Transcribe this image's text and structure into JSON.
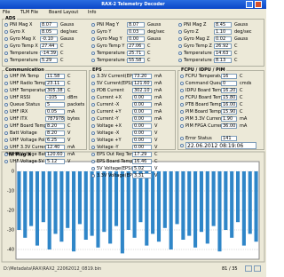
{
  "window": {
    "title": "RAX-2 Telemetry Decoder"
  },
  "menu": [
    "File",
    "TLM File",
    "Board Layout",
    "Info"
  ],
  "groups": [
    {
      "title": "ADS",
      "columns": 3,
      "rows": [
        {
          "label": "PNI Mag X",
          "value": "8.07",
          "unit": "Gauss"
        },
        {
          "label": "Gyro X",
          "value": "8.05",
          "unit": "deg/sec"
        },
        {
          "label": "Gyro Mag X",
          "value": "-0.10",
          "unit": "Gauss"
        },
        {
          "label": "Gyro Temp X",
          "value": "27.44",
          "unit": "C"
        },
        {
          "label": "Temperature +X",
          "value": "-14.39",
          "unit": "C"
        },
        {
          "label": "Temperature -X",
          "value": "5.29",
          "unit": "C"
        },
        {
          "label": "PNI Mag Y",
          "value": "8.07",
          "unit": "Gauss"
        },
        {
          "label": "Gyro Y",
          "value": "0.03",
          "unit": "deg/sec"
        },
        {
          "label": "Gyro Mag Y",
          "value": "0.00",
          "unit": "Gauss"
        },
        {
          "label": "Gyro Temp Y",
          "value": "27.06",
          "unit": "C"
        },
        {
          "label": "Temperature +Y",
          "value": "25.71",
          "unit": "C"
        },
        {
          "label": "Temperature -Y",
          "value": "55.58",
          "unit": "C"
        },
        {
          "label": "PNI Mag Z",
          "value": "8.45",
          "unit": "Gauss"
        },
        {
          "label": "Gyro Z",
          "value": "1.10",
          "unit": "deg/sec"
        },
        {
          "label": "Gyro Mag Z",
          "value": "0.02",
          "unit": "Gauss"
        },
        {
          "label": "Gyro Temp Z",
          "value": "26.92",
          "unit": "C"
        },
        {
          "label": "Temperature +Z",
          "value": "14.63",
          "unit": "C"
        },
        {
          "label": "Temperature -Z",
          "value": "8.13",
          "unit": "C"
        }
      ]
    },
    {
      "title": "Communication",
      "columns": 1,
      "rows": [
        {
          "label": "UHF PA Temp",
          "value": "11.58",
          "unit": "C"
        },
        {
          "label": "UHF Radio Temp",
          "value": "23.11",
          "unit": "C"
        },
        {
          "label": "UHF Temperature 2",
          "value": "305.38",
          "unit": "C"
        },
        {
          "label": "UHF RSSI",
          "value": "-105",
          "unit": "dBm"
        },
        {
          "label": "Queue Status",
          "value": "5",
          "unit": "packets"
        },
        {
          "label": "UHF IRX",
          "value": "0.05",
          "unit": "mA"
        },
        {
          "label": "UHF ITX",
          "value": "787978",
          "unit": "bytes"
        },
        {
          "label": "UHF Board Temp",
          "value": "8.20",
          "unit": "C"
        },
        {
          "label": "Batt Voltage",
          "value": "8.20",
          "unit": "V"
        },
        {
          "label": "UHF Voltage Pol 1",
          "value": "6.25",
          "unit": "V"
        },
        {
          "label": "UHF 3.3V Current",
          "value": "12.40",
          "unit": "mA"
        },
        {
          "label": "UHF Voltage Batt",
          "value": "120.60",
          "unit": "mA"
        },
        {
          "label": "UHF Voltage 5V",
          "value": "5.12",
          "unit": "V"
        }
      ]
    },
    {
      "title": "EPS",
      "columns": 1,
      "rows": [
        {
          "label": "3.3V Current(EPS)",
          "value": "73.20",
          "unit": "mA"
        },
        {
          "label": "5V Current(EPS)",
          "value": "121.60",
          "unit": "mA"
        },
        {
          "label": "PDB Current",
          "value": "302.10",
          "unit": "mA"
        },
        {
          "label": "Current +X",
          "value": "0.00",
          "unit": "mA"
        },
        {
          "label": "Current -X",
          "value": "0.00",
          "unit": "mA"
        },
        {
          "label": "Current +Y",
          "value": "0.00",
          "unit": "mA"
        },
        {
          "label": "Current -Y",
          "value": "0.00",
          "unit": "mA"
        },
        {
          "label": "Voltage +X",
          "value": "0.00",
          "unit": "V"
        },
        {
          "label": "Voltage -X",
          "value": "0.00",
          "unit": "V"
        },
        {
          "label": "Voltage +Y",
          "value": "0.00",
          "unit": "V"
        },
        {
          "label": "Voltage -Y",
          "value": "0.00",
          "unit": "V"
        },
        {
          "label": "EPS Out Reg Temp",
          "value": "17.29",
          "unit": "C"
        },
        {
          "label": "EPS Board Temp",
          "value": "16.46",
          "unit": "C"
        },
        {
          "label": "5V Voltage(EPS)",
          "value": "5.02",
          "unit": "V"
        },
        {
          "label": "3.3V Voltage(EPS)",
          "value": "3.31",
          "unit": "V"
        }
      ]
    },
    {
      "title": "FCPU / IDPU / PIM",
      "columns": 1,
      "rows": [
        {
          "label": "FCPU Temperature",
          "value": "16",
          "unit": "C"
        },
        {
          "label": "Command Queue",
          "value": "0",
          "unit": "cmds"
        },
        {
          "label": "IDPU Board Temp",
          "value": "16.20",
          "unit": "C"
        },
        {
          "label": "FCPU Board Temp",
          "value": "15.80",
          "unit": "C"
        },
        {
          "label": "PTB Board Temp",
          "value": "16.00",
          "unit": "C"
        },
        {
          "label": "PIM Board Temp",
          "value": "15.90",
          "unit": "C"
        },
        {
          "label": "PIM 3.3V Current",
          "value": "1.90",
          "unit": "mA"
        },
        {
          "label": "PIM FPGA Current",
          "value": "36.00",
          "unit": "mA"
        },
        {
          "label": "Error Status",
          "value": "141",
          "unit": ""
        },
        {
          "label": "SD Error Status",
          "value": "65535",
          "unit": ""
        }
      ]
    }
  ],
  "timestamp": "22.06.2012 08:19:06",
  "plot": {
    "title": "PNI Mag X",
    "values": [
      -30,
      -34,
      -28,
      -38,
      -26,
      -40,
      -32,
      -36,
      -29,
      -41,
      -27,
      -35,
      -33,
      -39,
      -31,
      -37,
      -28,
      -42,
      -30,
      -34,
      -26,
      -38,
      -32,
      -36,
      -29,
      -40,
      -27,
      -35,
      -33,
      -39,
      -31,
      -37,
      -28,
      -41,
      -30,
      -34,
      -26,
      -38,
      -32,
      -36
    ],
    "ylim": [
      -45,
      5
    ],
    "yticks": [
      0,
      -10,
      -20,
      -30,
      -40
    ],
    "color": "#2f86c8"
  },
  "status": {
    "path": "D:\\Metadata\\RAX\\RAX2_22062012_0819.bin",
    "page": "81 / 35"
  }
}
